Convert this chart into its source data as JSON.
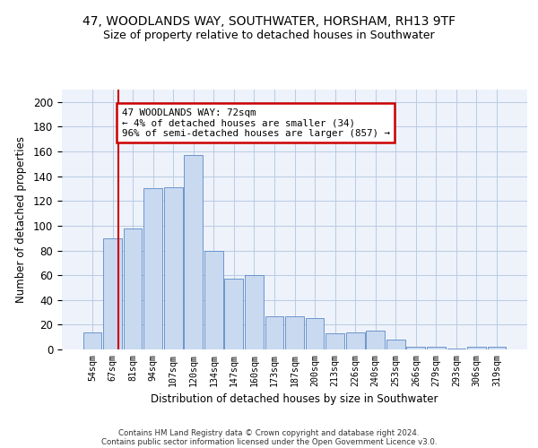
{
  "title_line1": "47, WOODLANDS WAY, SOUTHWATER, HORSHAM, RH13 9TF",
  "title_line2": "Size of property relative to detached houses in Southwater",
  "xlabel": "Distribution of detached houses by size in Southwater",
  "ylabel": "Number of detached properties",
  "footer_line1": "Contains HM Land Registry data © Crown copyright and database right 2024.",
  "footer_line2": "Contains public sector information licensed under the Open Government Licence v3.0.",
  "bar_labels": [
    "54sqm",
    "67sqm",
    "81sqm",
    "94sqm",
    "107sqm",
    "120sqm",
    "134sqm",
    "147sqm",
    "160sqm",
    "173sqm",
    "187sqm",
    "200sqm",
    "213sqm",
    "226sqm",
    "240sqm",
    "253sqm",
    "266sqm",
    "279sqm",
    "293sqm",
    "306sqm",
    "319sqm"
  ],
  "bar_values": [
    14,
    90,
    98,
    130,
    131,
    157,
    80,
    57,
    60,
    27,
    27,
    25,
    13,
    14,
    15,
    8,
    2,
    2,
    1,
    2,
    2
  ],
  "bar_color": "#c9d9f0",
  "bar_edge_color": "#5a8ac6",
  "annotation_text": "47 WOODLANDS WAY: 72sqm\n← 4% of detached houses are smaller (34)\n96% of semi-detached houses are larger (857) →",
  "annotation_box_color": "#ffffff",
  "annotation_border_color": "#cc0000",
  "vertical_line_color": "#cc0000",
  "ylim": [
    0,
    210
  ],
  "yticks": [
    0,
    20,
    40,
    60,
    80,
    100,
    120,
    140,
    160,
    180,
    200
  ],
  "grid_color": "#b8cce4",
  "bg_color": "#eef2fa",
  "title1_fontsize": 10,
  "title2_fontsize": 9,
  "line_x_index": 1.3
}
